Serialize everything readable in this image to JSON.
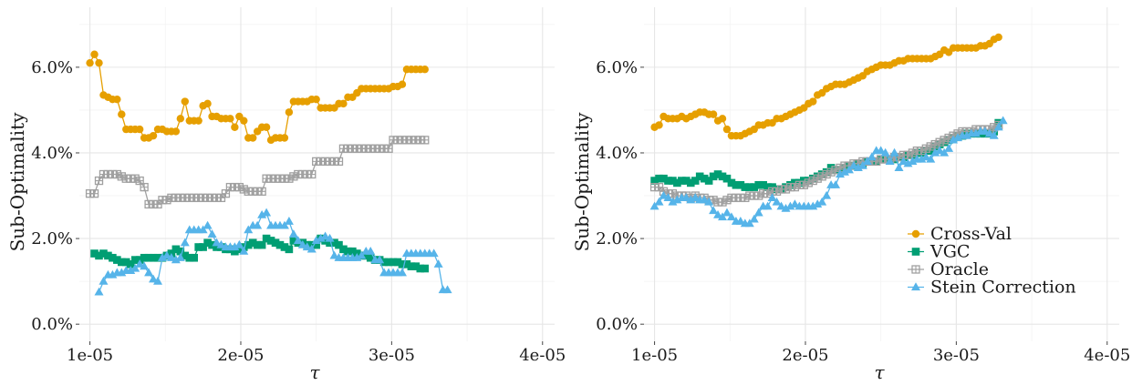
{
  "colors": {
    "cross_val": "#E69F00",
    "vgc": "#009E73",
    "oracle": "#A0A0A0",
    "stein": "#56B4E9"
  },
  "legend": [
    {
      "name": "Cross-Val",
      "color": "#E69F00",
      "marker": "circle"
    },
    {
      "name": "VGC",
      "color": "#009E73",
      "marker": "square"
    },
    {
      "name": "Oracle",
      "color": "#A0A0A0",
      "marker": "crossed-square"
    },
    {
      "name": "Stein Correction",
      "color": "#56B4E9",
      "marker": "triangle"
    }
  ],
  "chart_data": [
    {
      "type": "line",
      "xlabel": "τ",
      "ylabel": "Sub-Optimality",
      "xlim": [
        9.3e-06,
        4.08e-05
      ],
      "ylim": [
        -0.4,
        7.4
      ],
      "x_ticks": [
        1e-05,
        2e-05,
        3e-05,
        4e-05
      ],
      "x_tick_labels": [
        "1e-05",
        "2e-05",
        "3e-05",
        "4e-05"
      ],
      "y_ticks": [
        0,
        2,
        4,
        6
      ],
      "y_tick_labels": [
        "0.0%",
        "2.0%",
        "4.0%",
        "6.0%"
      ],
      "grid": true,
      "legend": "none",
      "x_start": 1e-05,
      "x_step": 3e-07,
      "series": [
        {
          "name": "Cross-Val",
          "color": "#E69F00",
          "marker": "circle",
          "start_index": 0,
          "values": [
            6.1,
            6.3,
            6.1,
            5.35,
            5.3,
            5.25,
            5.25,
            4.9,
            4.55,
            4.55,
            4.55,
            4.55,
            4.35,
            4.35,
            4.4,
            4.55,
            4.55,
            4.5,
            4.5,
            4.5,
            4.8,
            5.2,
            4.75,
            4.75,
            4.75,
            5.1,
            5.15,
            4.85,
            4.85,
            4.8,
            4.8,
            4.8,
            4.6,
            4.85,
            4.75,
            4.35,
            4.35,
            4.5,
            4.6,
            4.6,
            4.3,
            4.35,
            4.35,
            4.35,
            4.95,
            5.2,
            5.2,
            5.2,
            5.2,
            5.25,
            5.25,
            5.05,
            5.05,
            5.05,
            5.05,
            5.15,
            5.15,
            5.3,
            5.3,
            5.4,
            5.5,
            5.5,
            5.5,
            5.5,
            5.5,
            5.5,
            5.5,
            5.55,
            5.55,
            5.6,
            5.95,
            5.95,
            5.95,
            5.95,
            5.95
          ]
        },
        {
          "name": "VGC",
          "color": "#009E73",
          "marker": "square",
          "start_index": 1,
          "values": [
            1.65,
            1.6,
            1.65,
            1.6,
            1.55,
            1.5,
            1.45,
            1.45,
            1.4,
            1.5,
            1.5,
            1.55,
            1.55,
            1.55,
            1.55,
            1.55,
            1.6,
            1.65,
            1.75,
            1.7,
            1.6,
            1.55,
            1.55,
            1.8,
            1.8,
            1.9,
            1.85,
            1.8,
            1.8,
            1.75,
            1.75,
            1.7,
            1.75,
            1.8,
            1.85,
            1.9,
            1.85,
            1.85,
            2.0,
            1.95,
            1.9,
            1.85,
            1.8,
            1.75,
            1.95,
            1.9,
            1.9,
            1.85,
            1.85,
            1.85,
            2.0,
            1.95,
            1.9,
            1.9,
            1.85,
            1.75,
            1.7,
            1.7,
            1.65,
            1.6,
            1.6,
            1.55,
            1.5,
            1.5,
            1.45,
            1.45,
            1.45,
            1.45,
            1.4,
            1.4,
            1.35,
            1.35,
            1.3,
            1.3
          ]
        },
        {
          "name": "Oracle",
          "color": "#A0A0A0",
          "marker": "crossed-square",
          "start_index": 0,
          "values": [
            3.05,
            3.05,
            3.35,
            3.5,
            3.5,
            3.5,
            3.5,
            3.45,
            3.4,
            3.4,
            3.4,
            3.35,
            3.2,
            2.8,
            2.8,
            2.8,
            2.9,
            2.9,
            2.95,
            2.95,
            2.95,
            2.95,
            2.95,
            2.95,
            2.95,
            2.95,
            2.95,
            2.95,
            2.95,
            2.95,
            3.05,
            3.2,
            3.2,
            3.2,
            3.15,
            3.1,
            3.1,
            3.1,
            3.1,
            3.4,
            3.4,
            3.4,
            3.4,
            3.4,
            3.4,
            3.45,
            3.5,
            3.5,
            3.5,
            3.5,
            3.8,
            3.8,
            3.8,
            3.8,
            3.8,
            3.8,
            4.1,
            4.1,
            4.1,
            4.1,
            4.1,
            4.1,
            4.1,
            4.1,
            4.1,
            4.1,
            4.1,
            4.3,
            4.3,
            4.3,
            4.3,
            4.3,
            4.3,
            4.3,
            4.3
          ]
        },
        {
          "name": "Stein Correction",
          "color": "#56B4E9",
          "marker": "triangle",
          "start_index": 2,
          "values": [
            0.75,
            1.0,
            1.15,
            1.15,
            1.2,
            1.2,
            1.25,
            1.25,
            1.3,
            1.4,
            1.35,
            1.2,
            1.05,
            1.0,
            1.55,
            1.6,
            1.55,
            1.5,
            1.55,
            1.9,
            2.2,
            2.2,
            2.2,
            2.2,
            2.3,
            2.1,
            1.9,
            1.85,
            1.8,
            1.8,
            1.8,
            1.85,
            1.7,
            2.2,
            2.3,
            2.3,
            2.55,
            2.6,
            2.3,
            2.3,
            2.3,
            2.3,
            2.4,
            2.1,
            1.95,
            1.85,
            1.8,
            1.75,
            1.95,
            2.0,
            2.05,
            2.0,
            1.6,
            1.55,
            1.55,
            1.55,
            1.55,
            1.55,
            1.6,
            1.7,
            1.7,
            1.5,
            1.5,
            1.2,
            1.2,
            1.2,
            1.2,
            1.2,
            1.65,
            1.65,
            1.65,
            1.65,
            1.65,
            1.65,
            1.65,
            1.4,
            0.8,
            0.8
          ]
        }
      ]
    },
    {
      "type": "line",
      "xlabel": "τ",
      "ylabel": "Sub-Optimality",
      "xlim": [
        9.3e-06,
        4.08e-05
      ],
      "ylim": [
        -0.4,
        7.4
      ],
      "x_ticks": [
        1e-05,
        2e-05,
        3e-05,
        4e-05
      ],
      "x_tick_labels": [
        "1e-05",
        "2e-05",
        "3e-05",
        "4e-05"
      ],
      "y_ticks": [
        0,
        2,
        4,
        6
      ],
      "y_tick_labels": [
        "0.0%",
        "2.0%",
        "4.0%",
        "6.0%"
      ],
      "grid": true,
      "legend": "bottom-right",
      "x_start": 1e-05,
      "x_step": 3e-07,
      "series": [
        {
          "name": "Cross-Val",
          "color": "#E69F00",
          "marker": "circle",
          "start_index": 0,
          "values": [
            4.6,
            4.65,
            4.85,
            4.8,
            4.8,
            4.8,
            4.85,
            4.8,
            4.85,
            4.9,
            4.95,
            4.95,
            4.9,
            4.9,
            4.75,
            4.8,
            4.55,
            4.4,
            4.4,
            4.4,
            4.45,
            4.5,
            4.55,
            4.65,
            4.65,
            4.7,
            4.7,
            4.8,
            4.8,
            4.85,
            4.9,
            4.95,
            5.0,
            5.05,
            5.15,
            5.2,
            5.35,
            5.4,
            5.5,
            5.55,
            5.6,
            5.6,
            5.6,
            5.65,
            5.7,
            5.75,
            5.8,
            5.9,
            5.95,
            6.0,
            6.05,
            6.05,
            6.05,
            6.1,
            6.15,
            6.15,
            6.2,
            6.2,
            6.2,
            6.2,
            6.2,
            6.2,
            6.25,
            6.3,
            6.4,
            6.35,
            6.45,
            6.45,
            6.45,
            6.45,
            6.45,
            6.45,
            6.5,
            6.5,
            6.55,
            6.65,
            6.7
          ]
        },
        {
          "name": "VGC",
          "color": "#009E73",
          "marker": "square",
          "start_index": 0,
          "values": [
            3.35,
            3.4,
            3.4,
            3.35,
            3.35,
            3.3,
            3.35,
            3.35,
            3.3,
            3.35,
            3.45,
            3.4,
            3.35,
            3.45,
            3.5,
            3.45,
            3.4,
            3.3,
            3.25,
            3.25,
            3.2,
            3.2,
            3.2,
            3.25,
            3.25,
            3.2,
            3.2,
            3.15,
            3.15,
            3.2,
            3.25,
            3.3,
            3.3,
            3.35,
            3.35,
            3.4,
            3.45,
            3.5,
            3.55,
            3.65,
            3.6,
            3.6,
            3.65,
            3.7,
            3.7,
            3.75,
            3.75,
            3.8,
            3.8,
            3.8,
            3.85,
            3.85,
            3.85,
            3.85,
            3.9,
            3.9,
            3.95,
            3.95,
            4.0,
            4.0,
            4.05,
            4.05,
            4.15,
            4.2,
            4.25,
            4.3,
            4.35,
            4.4,
            4.4,
            4.45,
            4.45,
            4.45,
            4.45,
            4.45,
            4.45,
            4.5,
            4.7
          ]
        },
        {
          "name": "Oracle",
          "color": "#A0A0A0",
          "marker": "crossed-square",
          "start_index": 0,
          "values": [
            3.2,
            3.2,
            3.1,
            3.05,
            3.05,
            3.0,
            3.0,
            3.0,
            2.95,
            3.0,
            2.95,
            2.95,
            2.9,
            2.9,
            2.85,
            2.85,
            2.9,
            2.95,
            2.95,
            2.95,
            2.95,
            3.0,
            3.0,
            3.0,
            3.05,
            3.05,
            3.1,
            3.1,
            3.15,
            3.15,
            3.2,
            3.2,
            3.25,
            3.25,
            3.3,
            3.35,
            3.4,
            3.45,
            3.5,
            3.55,
            3.6,
            3.65,
            3.7,
            3.7,
            3.75,
            3.75,
            3.8,
            3.8,
            3.8,
            3.8,
            3.85,
            3.85,
            3.85,
            3.9,
            3.9,
            3.95,
            3.95,
            4.0,
            4.05,
            4.05,
            4.1,
            4.15,
            4.2,
            4.25,
            4.3,
            4.35,
            4.4,
            4.45,
            4.5,
            4.5,
            4.5,
            4.55,
            4.55,
            4.55,
            4.55,
            4.6,
            4.65
          ]
        },
        {
          "name": "Stein Correction",
          "color": "#56B4E9",
          "marker": "triangle",
          "start_index": 0,
          "values": [
            2.75,
            2.85,
            3.0,
            2.95,
            2.85,
            2.9,
            2.95,
            2.95,
            2.9,
            2.95,
            2.9,
            2.9,
            2.85,
            2.65,
            2.55,
            2.5,
            2.6,
            2.5,
            2.4,
            2.4,
            2.35,
            2.35,
            2.45,
            2.6,
            2.75,
            2.75,
            2.95,
            2.85,
            2.75,
            2.7,
            2.75,
            2.8,
            2.75,
            2.75,
            2.75,
            2.75,
            2.8,
            2.85,
            3.0,
            3.25,
            3.25,
            3.5,
            3.55,
            3.6,
            3.7,
            3.65,
            3.7,
            3.8,
            3.9,
            4.05,
            4.05,
            4.0,
            3.8,
            4.0,
            3.65,
            3.8,
            3.75,
            3.8,
            3.85,
            3.85,
            3.9,
            3.85,
            4.0,
            4.05,
            4.0,
            4.1,
            4.3,
            4.35,
            4.4,
            4.4,
            4.45,
            4.45,
            4.5,
            4.5,
            4.45,
            4.4,
            4.6,
            4.75
          ]
        }
      ]
    }
  ]
}
